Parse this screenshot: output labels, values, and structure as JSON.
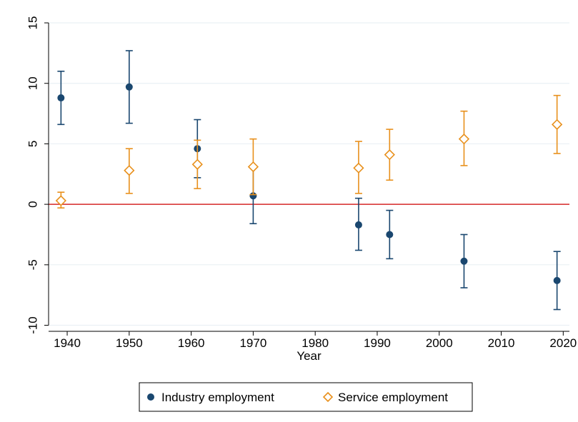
{
  "chart_data": {
    "type": "scatter",
    "xlabel": "Year",
    "ylabel": "",
    "xlim": [
      1937,
      2021
    ],
    "ylim": [
      -10.5,
      16.3
    ],
    "xticks": [
      1940,
      1950,
      1960,
      1970,
      1980,
      1990,
      2000,
      2010,
      2020
    ],
    "yticks": [
      -10,
      -5,
      0,
      5,
      10,
      15
    ],
    "grid": true,
    "reference_line": {
      "y": 0,
      "color": "#d62728"
    },
    "legend_position": "bottom-center",
    "series": [
      {
        "name": "Industry employment",
        "marker": "filled-circle",
        "color": "#1a476f",
        "points": [
          {
            "x": 1939,
            "y": 8.8,
            "lo": 6.6,
            "hi": 11.0
          },
          {
            "x": 1950,
            "y": 9.7,
            "lo": 6.7,
            "hi": 12.7
          },
          {
            "x": 1961,
            "y": 4.6,
            "lo": 2.2,
            "hi": 7.0
          },
          {
            "x": 1970,
            "y": 0.7,
            "lo": -1.6,
            "hi": 3.0
          },
          {
            "x": 1987,
            "y": -1.7,
            "lo": -3.8,
            "hi": 0.5
          },
          {
            "x": 1992,
            "y": -2.5,
            "lo": -4.5,
            "hi": -0.5
          },
          {
            "x": 2004,
            "y": -4.7,
            "lo": -6.9,
            "hi": -2.5
          },
          {
            "x": 2019,
            "y": -6.3,
            "lo": -8.7,
            "hi": -3.9
          }
        ]
      },
      {
        "name": "Service employment",
        "marker": "hollow-diamond",
        "color": "#e8901c",
        "points": [
          {
            "x": 1939,
            "y": 0.3,
            "lo": -0.3,
            "hi": 1.0
          },
          {
            "x": 1950,
            "y": 2.8,
            "lo": 0.9,
            "hi": 4.6
          },
          {
            "x": 1961,
            "y": 3.3,
            "lo": 1.3,
            "hi": 5.3
          },
          {
            "x": 1970,
            "y": 3.1,
            "lo": 0.8,
            "hi": 5.4
          },
          {
            "x": 1987,
            "y": 3.0,
            "lo": 0.9,
            "hi": 5.2
          },
          {
            "x": 1992,
            "y": 4.1,
            "lo": 2.0,
            "hi": 6.2
          },
          {
            "x": 2004,
            "y": 5.4,
            "lo": 3.2,
            "hi": 7.7
          },
          {
            "x": 2019,
            "y": 6.6,
            "lo": 4.2,
            "hi": 9.0
          }
        ]
      }
    ]
  }
}
